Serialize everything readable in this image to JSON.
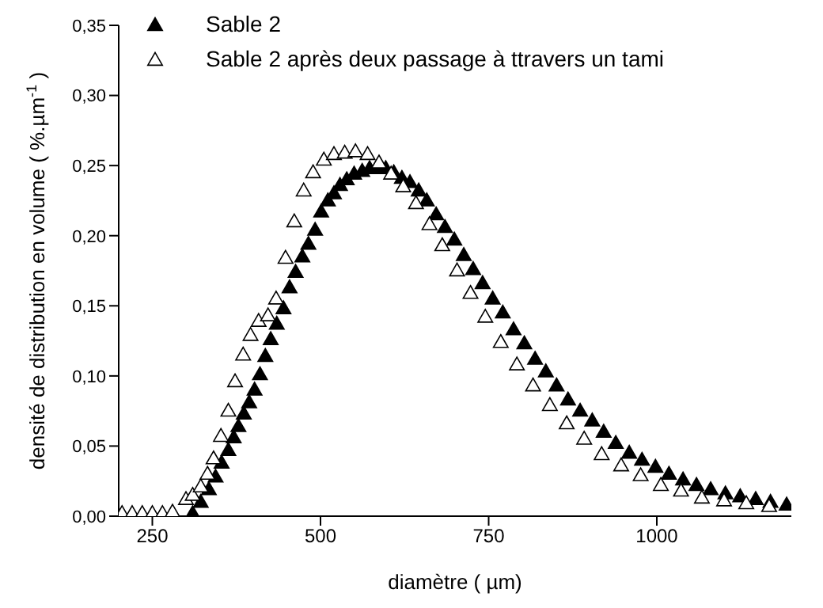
{
  "chart_data": {
    "type": "scatter",
    "xlabel": "diamètre  ( µm)",
    "ylabel": "densité de distribution en volume  ( %.µm$^{-1}$ )",
    "xlim": [
      200,
      1200
    ],
    "xticks": [
      250,
      500,
      750,
      1000
    ],
    "ylim": [
      0,
      0.35
    ],
    "yticks": [
      {
        "value": 0,
        "label": "0,00"
      },
      {
        "value": 0.05,
        "label": "0,05"
      },
      {
        "value": 0.1,
        "label": "0,10"
      },
      {
        "value": 0.15,
        "label": "0,15"
      },
      {
        "value": 0.2,
        "label": "0,20"
      },
      {
        "value": 0.25,
        "label": "0,25"
      },
      {
        "value": 0.3,
        "label": "0,30"
      },
      {
        "value": 0.35,
        "label": "0,35"
      }
    ],
    "grid": false,
    "legend": "top left",
    "marker": "triangle",
    "series": [
      {
        "name": "Sable 2",
        "color": "#000000",
        "x": [
          310,
          322,
          334,
          344,
          353,
          363,
          371,
          378,
          386,
          394,
          402,
          410,
          418,
          426,
          435,
          445,
          454,
          463,
          473,
          482,
          492,
          501,
          511,
          520,
          529,
          539,
          550,
          562,
          573,
          585,
          597,
          609,
          621,
          633,
          646,
          658,
          672,
          685,
          699,
          713,
          727,
          741,
          756,
          771,
          787,
          803,
          819,
          835,
          851,
          868,
          886,
          904,
          921,
          939,
          959,
          978,
          998,
          1018,
          1039,
          1059,
          1080,
          1102,
          1124,
          1147,
          1169,
          1193
        ],
        "values": [
          0.002,
          0.01,
          0.019,
          0.028,
          0.038,
          0.047,
          0.056,
          0.064,
          0.073,
          0.081,
          0.09,
          0.101,
          0.114,
          0.126,
          0.137,
          0.148,
          0.163,
          0.174,
          0.185,
          0.194,
          0.204,
          0.217,
          0.225,
          0.23,
          0.236,
          0.24,
          0.244,
          0.246,
          0.248,
          0.248,
          0.248,
          0.245,
          0.241,
          0.238,
          0.232,
          0.225,
          0.215,
          0.206,
          0.197,
          0.186,
          0.176,
          0.166,
          0.155,
          0.145,
          0.133,
          0.123,
          0.112,
          0.103,
          0.093,
          0.083,
          0.075,
          0.068,
          0.06,
          0.052,
          0.045,
          0.04,
          0.035,
          0.03,
          0.026,
          0.022,
          0.019,
          0.016,
          0.014,
          0.012,
          0.01,
          0.008
        ]
      },
      {
        "name": "Sable 2 après deux passage à ttravers un tami",
        "color": "#ffffff",
        "x": [
          205,
          220,
          235,
          250,
          265,
          280,
          300,
          310,
          322,
          332,
          341,
          352,
          363,
          373,
          385,
          396,
          408,
          422,
          434,
          448,
          461,
          475,
          489,
          505,
          520,
          536,
          552,
          570,
          587,
          605,
          623,
          642,
          662,
          681,
          703,
          723,
          745,
          768,
          792,
          816,
          841,
          866,
          892,
          918,
          947,
          976,
          1006,
          1036,
          1067,
          1100,
          1133,
          1167
        ],
        "values": [
          0.002,
          0.002,
          0.002,
          0.002,
          0.002,
          0.003,
          0.012,
          0.015,
          0.021,
          0.03,
          0.041,
          0.057,
          0.075,
          0.096,
          0.115,
          0.129,
          0.139,
          0.143,
          0.155,
          0.184,
          0.21,
          0.232,
          0.245,
          0.254,
          0.258,
          0.259,
          0.26,
          0.258,
          0.252,
          0.244,
          0.235,
          0.223,
          0.208,
          0.193,
          0.175,
          0.159,
          0.142,
          0.124,
          0.108,
          0.093,
          0.079,
          0.066,
          0.055,
          0.044,
          0.036,
          0.029,
          0.022,
          0.018,
          0.013,
          0.011,
          0.009,
          0.007
        ]
      }
    ]
  }
}
